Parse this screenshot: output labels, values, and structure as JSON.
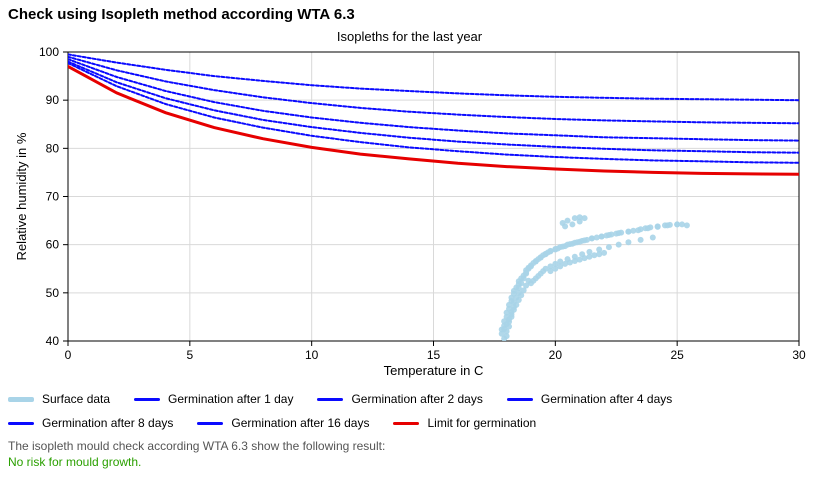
{
  "heading": "Check using Isopleth method according WTA 6.3",
  "chart": {
    "type": "scatter+line",
    "title": "Isopleths for the last year",
    "xlabel": "Temperature in C",
    "ylabel": "Relative humidity in %",
    "xlim": [
      0,
      30
    ],
    "ylim": [
      40,
      100
    ],
    "xtick_step": 5,
    "ytick_step": 10,
    "background_color": "#ffffff",
    "grid_color": "#d9d9d9",
    "axis_color": "#000000",
    "label_color": "#000000",
    "label_fontsize": 13,
    "tick_fontsize": 12,
    "series": {
      "surface_data": {
        "label": "Surface data",
        "color": "#a9d4e8",
        "marker": "circle",
        "marker_size": 3,
        "type": "scatter",
        "points": [
          [
            17.9,
            40.5
          ],
          [
            17.8,
            41.5
          ],
          [
            17.8,
            42.4
          ],
          [
            17.9,
            43.2
          ],
          [
            17.9,
            44.1
          ],
          [
            18.0,
            45.0
          ],
          [
            18.0,
            45.9
          ],
          [
            18.1,
            46.7
          ],
          [
            18.1,
            47.5
          ],
          [
            18.2,
            48.3
          ],
          [
            18.2,
            49.0
          ],
          [
            18.3,
            49.8
          ],
          [
            18.3,
            50.4
          ],
          [
            18.4,
            51.1
          ],
          [
            18.5,
            51.8
          ],
          [
            18.5,
            52.4
          ],
          [
            18.6,
            53.0
          ],
          [
            18.7,
            53.6
          ],
          [
            18.8,
            54.2
          ],
          [
            18.8,
            54.7
          ],
          [
            18.9,
            55.2
          ],
          [
            19.0,
            55.7
          ],
          [
            19.1,
            56.2
          ],
          [
            19.2,
            56.6
          ],
          [
            19.3,
            57.0
          ],
          [
            19.4,
            57.4
          ],
          [
            19.5,
            57.8
          ],
          [
            19.6,
            58.1
          ],
          [
            19.7,
            58.4
          ],
          [
            19.8,
            58.7
          ],
          [
            20.0,
            59.0
          ],
          [
            20.1,
            59.2
          ],
          [
            20.2,
            59.5
          ],
          [
            20.4,
            59.7
          ],
          [
            20.5,
            60.0
          ],
          [
            20.7,
            60.2
          ],
          [
            20.8,
            60.4
          ],
          [
            21.0,
            60.6
          ],
          [
            21.1,
            60.8
          ],
          [
            21.3,
            61.0
          ],
          [
            21.5,
            61.3
          ],
          [
            21.7,
            61.5
          ],
          [
            21.9,
            61.7
          ],
          [
            22.1,
            61.9
          ],
          [
            22.3,
            62.1
          ],
          [
            22.5,
            62.3
          ],
          [
            22.7,
            62.5
          ],
          [
            23.0,
            62.7
          ],
          [
            23.2,
            62.9
          ],
          [
            23.5,
            63.2
          ],
          [
            23.7,
            63.4
          ],
          [
            23.9,
            63.6
          ],
          [
            24.2,
            63.8
          ],
          [
            24.5,
            64.0
          ],
          [
            24.7,
            64.1
          ],
          [
            25.0,
            64.2
          ],
          [
            25.2,
            64.2
          ],
          [
            25.4,
            64.0
          ],
          [
            18.0,
            41.0
          ],
          [
            18.0,
            42.0
          ],
          [
            18.1,
            43.0
          ],
          [
            18.1,
            44.0
          ],
          [
            18.2,
            45.0
          ],
          [
            18.2,
            46.0
          ],
          [
            18.3,
            47.0
          ],
          [
            18.3,
            48.0
          ],
          [
            18.4,
            49.0
          ],
          [
            18.5,
            50.0
          ],
          [
            18.5,
            51.0
          ],
          [
            18.6,
            52.0
          ],
          [
            18.7,
            53.0
          ],
          [
            18.8,
            54.0
          ],
          [
            18.9,
            55.0
          ],
          [
            19.0,
            55.5
          ],
          [
            19.2,
            56.5
          ],
          [
            19.4,
            57.3
          ],
          [
            19.6,
            58.0
          ],
          [
            19.8,
            58.6
          ],
          [
            20.0,
            59.1
          ],
          [
            20.3,
            59.6
          ],
          [
            20.6,
            60.1
          ],
          [
            20.9,
            60.5
          ],
          [
            21.2,
            60.9
          ],
          [
            21.5,
            61.3
          ],
          [
            21.9,
            61.7
          ],
          [
            22.2,
            62.0
          ],
          [
            22.6,
            62.4
          ],
          [
            23.0,
            62.7
          ],
          [
            23.4,
            63.0
          ],
          [
            23.8,
            63.4
          ],
          [
            24.2,
            63.7
          ],
          [
            24.6,
            64.0
          ],
          [
            25.0,
            64.2
          ],
          [
            19.0,
            52.0
          ],
          [
            19.1,
            52.5
          ],
          [
            19.2,
            53.0
          ],
          [
            19.3,
            53.5
          ],
          [
            19.4,
            54.0
          ],
          [
            19.5,
            54.5
          ],
          [
            19.6,
            55.0
          ],
          [
            19.8,
            55.5
          ],
          [
            20.0,
            56.0
          ],
          [
            20.2,
            56.5
          ],
          [
            20.5,
            57.0
          ],
          [
            20.8,
            57.5
          ],
          [
            21.1,
            58.0
          ],
          [
            21.4,
            58.5
          ],
          [
            21.8,
            59.0
          ],
          [
            22.2,
            59.5
          ],
          [
            22.6,
            60.0
          ],
          [
            23.0,
            60.5
          ],
          [
            23.5,
            61.0
          ],
          [
            24.0,
            61.5
          ],
          [
            19.8,
            54.5
          ],
          [
            20.0,
            55.0
          ],
          [
            20.2,
            55.5
          ],
          [
            20.4,
            56.0
          ],
          [
            20.6,
            56.3
          ],
          [
            20.8,
            56.6
          ],
          [
            21.0,
            56.9
          ],
          [
            21.2,
            57.2
          ],
          [
            21.4,
            57.5
          ],
          [
            21.6,
            57.8
          ],
          [
            21.8,
            58.0
          ],
          [
            22.0,
            58.3
          ],
          [
            20.3,
            64.5
          ],
          [
            20.5,
            65.0
          ],
          [
            20.8,
            65.5
          ],
          [
            21.0,
            65.7
          ],
          [
            21.2,
            65.5
          ],
          [
            21.0,
            64.8
          ],
          [
            20.7,
            64.2
          ],
          [
            20.4,
            63.8
          ],
          [
            18.5,
            48.5
          ],
          [
            18.6,
            49.5
          ],
          [
            18.7,
            50.5
          ],
          [
            18.8,
            51.5
          ],
          [
            18.9,
            52.5
          ],
          [
            18.4,
            47.5
          ],
          [
            18.3,
            46.5
          ],
          [
            18.2,
            45.5
          ],
          [
            18.1,
            44.5
          ],
          [
            18.0,
            43.5
          ],
          [
            17.9,
            42.5
          ]
        ]
      },
      "germ_1": {
        "label": "Germination after 1 day",
        "type": "line",
        "color": "#0a0aff",
        "width": 2,
        "dash": "3,2",
        "points": [
          [
            0,
            99.5
          ],
          [
            2,
            97.8
          ],
          [
            4,
            96.3
          ],
          [
            6,
            95.0
          ],
          [
            8,
            94.0
          ],
          [
            10,
            93.1
          ],
          [
            12,
            92.4
          ],
          [
            14,
            91.9
          ],
          [
            16,
            91.4
          ],
          [
            18,
            91.0
          ],
          [
            20,
            90.7
          ],
          [
            22,
            90.5
          ],
          [
            24,
            90.3
          ],
          [
            26,
            90.2
          ],
          [
            28,
            90.1
          ],
          [
            30,
            90.0
          ]
        ]
      },
      "germ_2": {
        "label": "Germination after 2 days",
        "type": "line",
        "color": "#0a0aff",
        "width": 2,
        "dash": "3,2",
        "points": [
          [
            0,
            99.0
          ],
          [
            2,
            96.2
          ],
          [
            4,
            93.9
          ],
          [
            6,
            92.1
          ],
          [
            8,
            90.6
          ],
          [
            10,
            89.4
          ],
          [
            12,
            88.4
          ],
          [
            14,
            87.6
          ],
          [
            16,
            87.0
          ],
          [
            18,
            86.5
          ],
          [
            20,
            86.1
          ],
          [
            22,
            85.8
          ],
          [
            24,
            85.6
          ],
          [
            26,
            85.4
          ],
          [
            28,
            85.3
          ],
          [
            30,
            85.2
          ]
        ]
      },
      "germ_4": {
        "label": "Germination after 4 days",
        "type": "line",
        "color": "#0a0aff",
        "width": 2,
        "dash": "3,2",
        "points": [
          [
            0,
            98.5
          ],
          [
            2,
            94.8
          ],
          [
            4,
            91.9
          ],
          [
            6,
            89.6
          ],
          [
            8,
            87.8
          ],
          [
            10,
            86.4
          ],
          [
            12,
            85.3
          ],
          [
            14,
            84.4
          ],
          [
            16,
            83.7
          ],
          [
            18,
            83.1
          ],
          [
            20,
            82.7
          ],
          [
            22,
            82.3
          ],
          [
            24,
            82.1
          ],
          [
            26,
            81.9
          ],
          [
            28,
            81.7
          ],
          [
            30,
            81.6
          ]
        ]
      },
      "germ_8": {
        "label": "Germination after 8 days",
        "type": "line",
        "color": "#0a0aff",
        "width": 2,
        "dash": "3,2",
        "points": [
          [
            0,
            98.0
          ],
          [
            2,
            93.7
          ],
          [
            4,
            90.4
          ],
          [
            6,
            87.9
          ],
          [
            8,
            85.9
          ],
          [
            10,
            84.4
          ],
          [
            12,
            83.2
          ],
          [
            14,
            82.2
          ],
          [
            16,
            81.4
          ],
          [
            18,
            80.8
          ],
          [
            20,
            80.3
          ],
          [
            22,
            79.9
          ],
          [
            24,
            79.6
          ],
          [
            26,
            79.4
          ],
          [
            28,
            79.2
          ],
          [
            30,
            79.1
          ]
        ]
      },
      "germ_16": {
        "label": "Germination after 16 days",
        "type": "line",
        "color": "#0a0aff",
        "width": 2,
        "dash": "3,2",
        "points": [
          [
            0,
            97.7
          ],
          [
            2,
            92.9
          ],
          [
            4,
            89.2
          ],
          [
            6,
            86.4
          ],
          [
            8,
            84.3
          ],
          [
            10,
            82.6
          ],
          [
            12,
            81.3
          ],
          [
            14,
            80.2
          ],
          [
            16,
            79.4
          ],
          [
            18,
            78.7
          ],
          [
            20,
            78.2
          ],
          [
            22,
            77.8
          ],
          [
            24,
            77.5
          ],
          [
            26,
            77.3
          ],
          [
            28,
            77.1
          ],
          [
            30,
            77.0
          ]
        ]
      },
      "limit": {
        "label": "Limit for germination",
        "type": "line",
        "color": "#e60000",
        "width": 3,
        "dash": null,
        "points": [
          [
            0,
            97.0
          ],
          [
            2,
            91.5
          ],
          [
            4,
            87.4
          ],
          [
            6,
            84.3
          ],
          [
            8,
            82.0
          ],
          [
            10,
            80.2
          ],
          [
            12,
            78.8
          ],
          [
            14,
            77.8
          ],
          [
            16,
            76.9
          ],
          [
            18,
            76.2
          ],
          [
            20,
            75.7
          ],
          [
            22,
            75.3
          ],
          [
            24,
            75.0
          ],
          [
            26,
            74.8
          ],
          [
            28,
            74.7
          ],
          [
            30,
            74.6
          ]
        ]
      }
    }
  },
  "legend": [
    {
      "key": "surface_data",
      "label": "Surface data",
      "color": "#a9d4e8",
      "thick": true
    },
    {
      "key": "germ_1",
      "label": "Germination after 1 day",
      "color": "#0a0aff",
      "thick": false
    },
    {
      "key": "germ_2",
      "label": "Germination after 2 days",
      "color": "#0a0aff",
      "thick": false
    },
    {
      "key": "germ_4",
      "label": "Germination after 4 days",
      "color": "#0a0aff",
      "thick": false
    },
    {
      "key": "germ_8",
      "label": "Germination after 8 days",
      "color": "#0a0aff",
      "thick": false
    },
    {
      "key": "germ_16",
      "label": "Germination after 16 days",
      "color": "#0a0aff",
      "thick": false
    },
    {
      "key": "limit",
      "label": "Limit for germination",
      "color": "#e60000",
      "thick": false
    }
  ],
  "result": {
    "label": "The isopleth mould check according WTA 6.3 show the following result:",
    "text": "No risk for mould growth.",
    "text_color": "#2aa000"
  }
}
